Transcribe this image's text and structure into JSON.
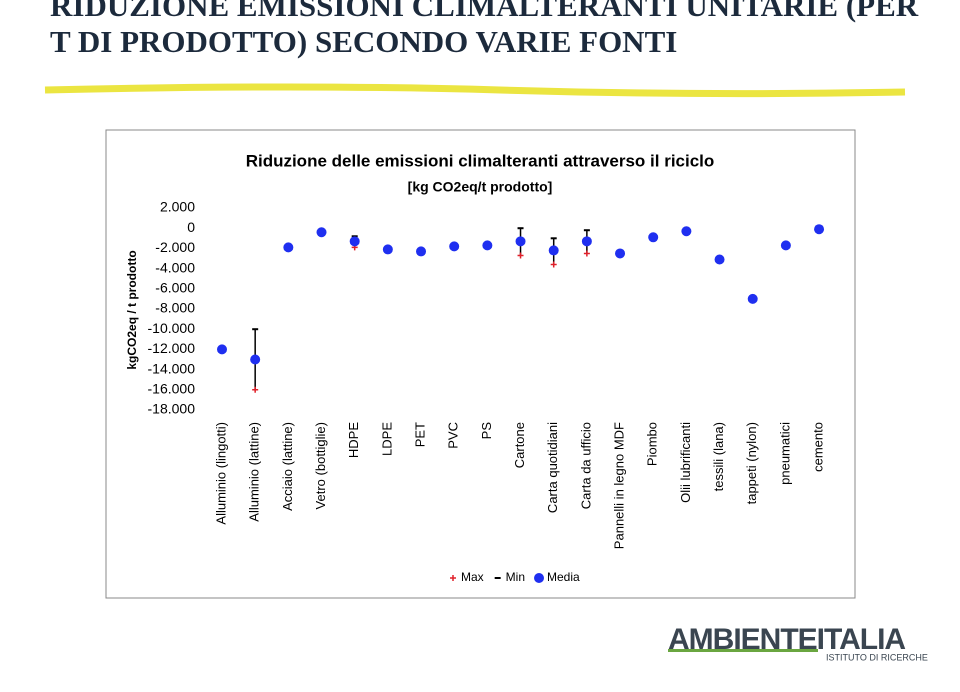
{
  "slide_title": "RIDUZIONE EMISSIONI CLIMALTERANTI UNITARIE (PER T DI PRODOTTO) SECONDO VARIE FONTI",
  "logo": {
    "name": "AMBIENTEITALIA",
    "subtitle": "ISTITUTO DI RICERCHE"
  },
  "chart_data": {
    "type": "range-dot",
    "title": "Riduzione delle emissioni climalteranti attraverso il riciclo",
    "subtitle": "[kg CO2eq/t prodotto]",
    "y_label": "kgCO2eq / t prodotto",
    "categories": [
      "Alluminio (lingotti)",
      "Alluminio (lattine)",
      "Acciaio (lattine)",
      "Vetro (bottiglie)",
      "HDPE",
      "LDPE",
      "PET",
      "PVC",
      "PS",
      "Cartone",
      "Carta quotidiani",
      "Carta da ufficio",
      "Pannelli in legno MDF",
      "Piombo",
      "Olii lubrificanti",
      "tessili (lana)",
      "tappeti (nylon)",
      "pneumatici",
      "cemento"
    ],
    "series": [
      {
        "name": "Max",
        "color": "#e0202a",
        "values": [
          null,
          -16000,
          null,
          null,
          -1900,
          null,
          null,
          null,
          null,
          -2700,
          -3600,
          -2500,
          null,
          null,
          null,
          null,
          null,
          null,
          null
        ]
      },
      {
        "name": "Min",
        "color": "#000000",
        "values": [
          null,
          -10000,
          null,
          null,
          -800,
          null,
          null,
          null,
          null,
          0,
          -1000,
          -200,
          null,
          null,
          null,
          null,
          null,
          null,
          null
        ]
      },
      {
        "name": "Media",
        "color": "#1f2ff0",
        "values": [
          -12000,
          -13000,
          -1900,
          -400,
          -1300,
          -2100,
          -2300,
          -1800,
          -1700,
          -1300,
          -2200,
          -1300,
          -2500,
          -900,
          -300,
          -3100,
          -7000,
          -1700,
          -100
        ]
      }
    ],
    "ylim": [
      -18000,
      2000
    ],
    "yticks": [
      {
        "value": 2000,
        "label": "2.000"
      },
      0,
      {
        "value": -2000,
        "label": "-2.000"
      },
      {
        "value": -4000,
        "label": "-4.000"
      },
      {
        "value": -6000,
        "label": "-6.000"
      },
      {
        "value": -8000,
        "label": "-8.000"
      },
      {
        "value": -10000,
        "label": "-10.000"
      },
      {
        "value": -12000,
        "label": "-12.000"
      },
      {
        "value": -14000,
        "label": "-14.000"
      },
      {
        "value": -16000,
        "label": "-16.000"
      },
      {
        "value": -18000,
        "label": "-18.000"
      }
    ],
    "grid": false,
    "legend": "bottom"
  }
}
